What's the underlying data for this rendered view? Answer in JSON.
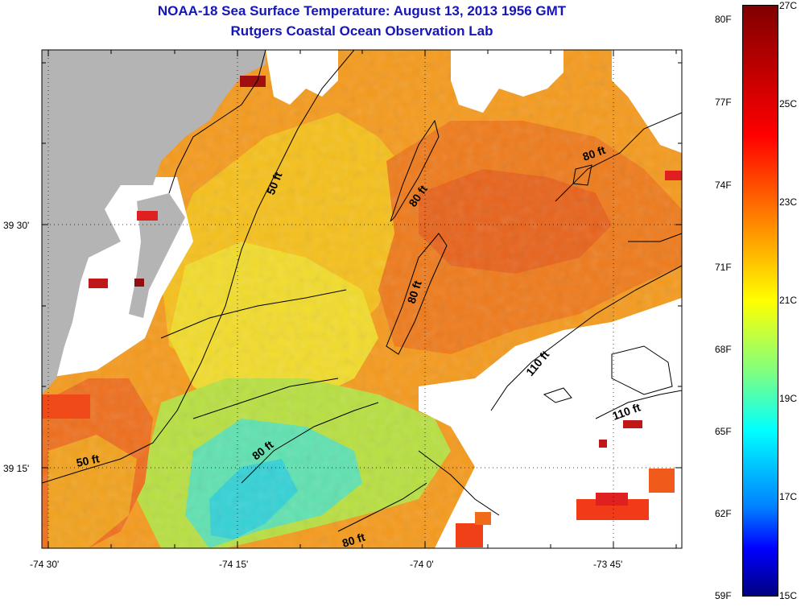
{
  "title": {
    "line1": "NOAA-18 Sea Surface Temperature:  August 13, 2013 1956 GMT",
    "line2": "Rutgers Coastal Ocean Observation Lab"
  },
  "axes": {
    "x_ticks": [
      "-74 30'",
      "-74 15'",
      "-74 0'",
      "-73 45'"
    ],
    "y_ticks": [
      "39 30'",
      "39 15'"
    ]
  },
  "contours": [
    "50 ft",
    "80 ft",
    "80 ft",
    "80 ft",
    "110 ft",
    "110 ft",
    "50 ft",
    "80 ft",
    "80 ft"
  ],
  "colorbar": {
    "fahrenheit": [
      "80F",
      "77F",
      "74F",
      "71F",
      "68F",
      "65F",
      "62F",
      "59F"
    ],
    "celsius": [
      "27C",
      "25C",
      "23C",
      "21C",
      "19C",
      "17C",
      "15C"
    ]
  },
  "colors": {
    "title": "#1515b8",
    "land": "#b4b4b4"
  }
}
